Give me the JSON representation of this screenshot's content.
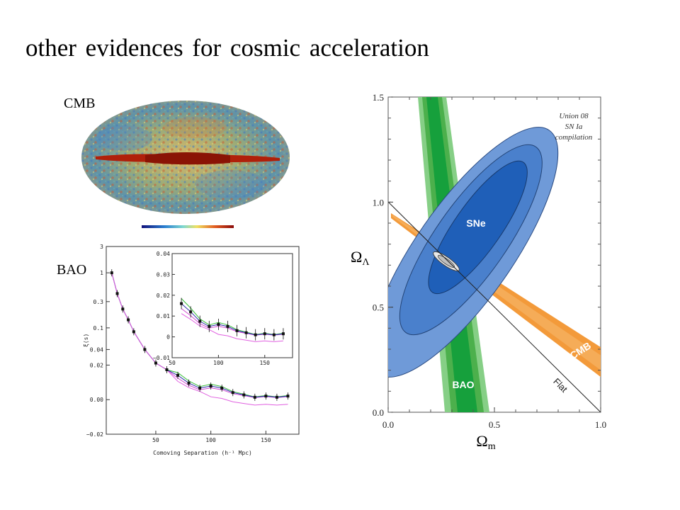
{
  "slide": {
    "title": "other evidences for cosmic acceleration",
    "cmb_label": "CMB",
    "bao_label": "BAO"
  },
  "colors": {
    "sne_outer": "#6f9ad8",
    "sne_mid": "#4a80cc",
    "sne_inner": "#1f5fb8",
    "bao_outer": "#86cf86",
    "bao_mid": "#4cb04c",
    "bao_inner": "#16a03c",
    "cmb_band": "#f39a3a",
    "cmb_map_galaxy": "#b0200a"
  },
  "chart_data": [
    {
      "type": "contour",
      "x_ticks": [
        "0.0",
        "0.5",
        "1.0"
      ],
      "y_ticks": [
        "0.0",
        "0.5",
        "1.0",
        "1.5"
      ],
      "xlabel": "Ωm",
      "ylabel": "ΩΛ",
      "xlim": [
        0,
        1
      ],
      "ylim": [
        0,
        1.5
      ],
      "annotation": [
        "Union 08",
        "SN Ia",
        "compilation"
      ],
      "flat_line": {
        "label": "Flat",
        "points": [
          [
            0,
            1
          ],
          [
            1,
            0
          ]
        ]
      },
      "series": [
        {
          "name": "SNe",
          "center": [
            0.34,
            0.82
          ],
          "levels": 3
        },
        {
          "name": "BAO",
          "x_range_at_y0": [
            0.27,
            0.48
          ],
          "x_range_at_y1_5": [
            0.15,
            0.3
          ],
          "levels": 3
        },
        {
          "name": "CMB",
          "from": [
            0.02,
            0.96
          ],
          "to": [
            1.0,
            0.2
          ],
          "levels": 2
        }
      ],
      "combined_constraint": [
        0.27,
        0.73
      ]
    },
    {
      "type": "line",
      "xlabel": "Comoving Separation (h⁻¹ Mpc)",
      "ylabel": "ξ(s)",
      "x_ticks": [
        "50",
        "100",
        "150"
      ],
      "y_ticks": [
        "3",
        "1",
        "0.3",
        "0.1",
        "0.04",
        "0.02",
        "0.00",
        "−0.02"
      ],
      "inset": {
        "x_ticks": [
          "50",
          "100",
          "150"
        ],
        "y_ticks": [
          "0.04",
          "0.03",
          "0.02",
          "0.01",
          "0",
          "−0.01"
        ]
      },
      "series": [
        {
          "name": "",
          "x": [
            10,
            15,
            20,
            25,
            30,
            40,
            50,
            60,
            70,
            80,
            90,
            100,
            110,
            120,
            130,
            140,
            150,
            160,
            170
          ],
          "y": [
            1.0,
            0.42,
            0.22,
            0.14,
            0.085,
            0.04,
            0.022,
            0.016,
            0.012,
            0.0075,
            0.005,
            0.006,
            0.005,
            0.003,
            0.002,
            0.001,
            0.0015,
            0.001,
            0.0015
          ]
        }
      ]
    }
  ]
}
